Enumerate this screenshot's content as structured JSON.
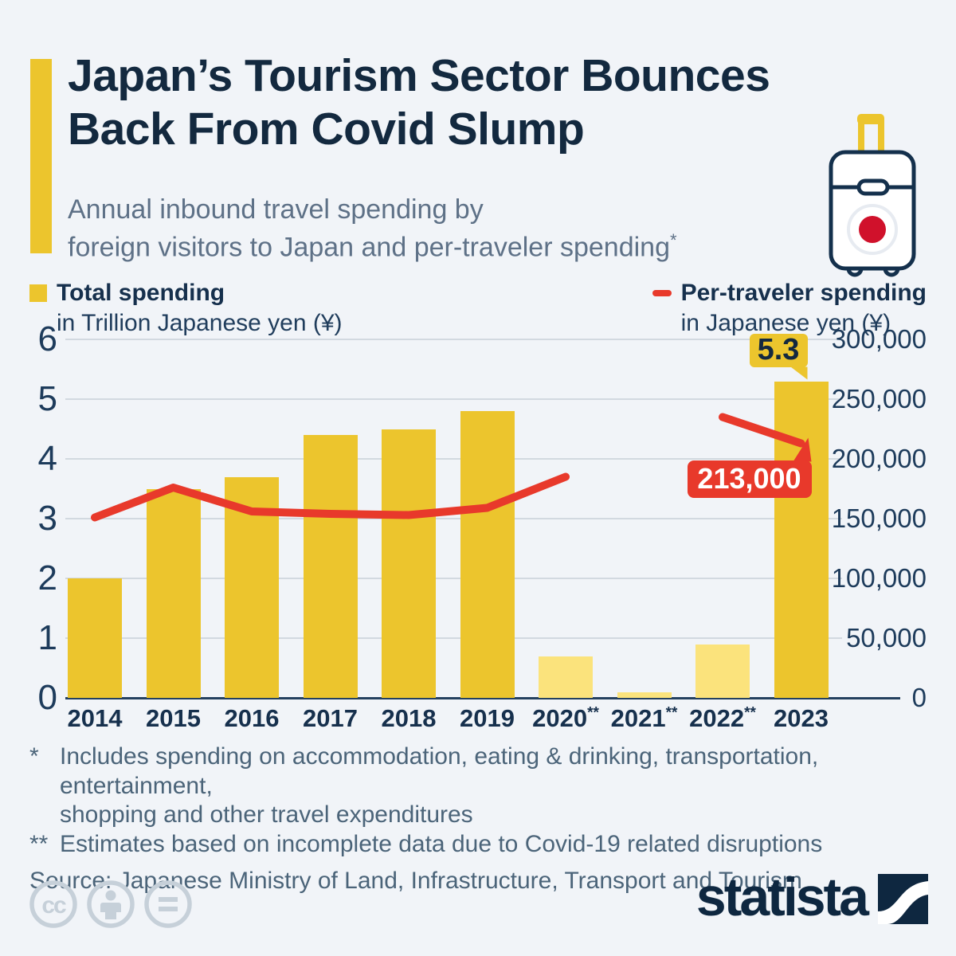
{
  "header": {
    "title_line1": "Japan’s Tourism Sector Bounces",
    "title_line2": "Back From Covid Slump",
    "subtitle_line1": "Annual inbound travel spending by",
    "subtitle_line2": "foreign visitors to Japan and per-traveler spending",
    "subtitle_sup": "*",
    "suitcase_icon": "suitcase-with-japan-flag-icon"
  },
  "legend": {
    "total": {
      "label": "Total spending",
      "sublabel": "in Trillion Japanese yen (¥)",
      "color": "#ecc52d"
    },
    "per_traveler": {
      "label": "Per-traveler spending",
      "sublabel": "in Japanese yen (¥)",
      "color": "#e8392b"
    }
  },
  "chart_data": {
    "type": "bar+line",
    "title": "Annual inbound travel spending by foreign visitors to Japan and per-traveler spending",
    "categories": [
      {
        "label": "2014",
        "sup": ""
      },
      {
        "label": "2015",
        "sup": ""
      },
      {
        "label": "2016",
        "sup": ""
      },
      {
        "label": "2017",
        "sup": ""
      },
      {
        "label": "2018",
        "sup": ""
      },
      {
        "label": "2019",
        "sup": ""
      },
      {
        "label": "2020",
        "sup": "**"
      },
      {
        "label": "2021",
        "sup": "**"
      },
      {
        "label": "2022",
        "sup": "**"
      },
      {
        "label": "2023",
        "sup": ""
      }
    ],
    "series": [
      {
        "name": "Total spending in Trillion Japanese yen (¥)",
        "type": "bar",
        "values": [
          2.0,
          3.5,
          3.7,
          4.4,
          4.5,
          4.8,
          0.7,
          0.1,
          0.9,
          5.3
        ],
        "estimate": [
          false,
          false,
          false,
          false,
          false,
          false,
          true,
          true,
          true,
          false
        ]
      },
      {
        "name": "Per-traveler spending in Japanese yen (¥)",
        "type": "line",
        "values": [
          151000,
          176000,
          156000,
          154000,
          153000,
          159000,
          185000,
          null,
          235000,
          213000
        ]
      }
    ],
    "left_axis": {
      "ticks": [
        0,
        1,
        2,
        3,
        4,
        5,
        6
      ],
      "range": [
        0,
        6
      ]
    },
    "right_axis": {
      "ticks": [
        "0",
        "50,000",
        "100,000",
        "150,000",
        "200,000",
        "250,000",
        "300,000"
      ],
      "range": [
        0,
        300000
      ]
    },
    "annotations": {
      "bar_callout": "5.3",
      "line_callout": "213,000"
    },
    "colors": {
      "bar": "#ecc52d",
      "bar_estimate": "#fbe37c",
      "line": "#e8392b",
      "grid": "#d2d9e0",
      "baseline": "#24405e"
    },
    "grid": true,
    "legend_position": "top"
  },
  "footnotes": {
    "rows": [
      {
        "marker": "*",
        "lines": [
          "Includes spending on accommodation, eating & drinking, transportation, entertainment,",
          "shopping and other travel expenditures"
        ]
      },
      {
        "marker": "**",
        "lines": [
          "Estimates based on incomplete data due to Covid-19 related disruptions"
        ]
      }
    ],
    "source": "Source: Japanese Ministry of Land, Infrastructure, Transport and Tourism"
  },
  "footer": {
    "brand": "statista",
    "cc_icons": [
      "cc-icon",
      "attribution-person-icon",
      "no-derivatives-equals-icon"
    ]
  }
}
